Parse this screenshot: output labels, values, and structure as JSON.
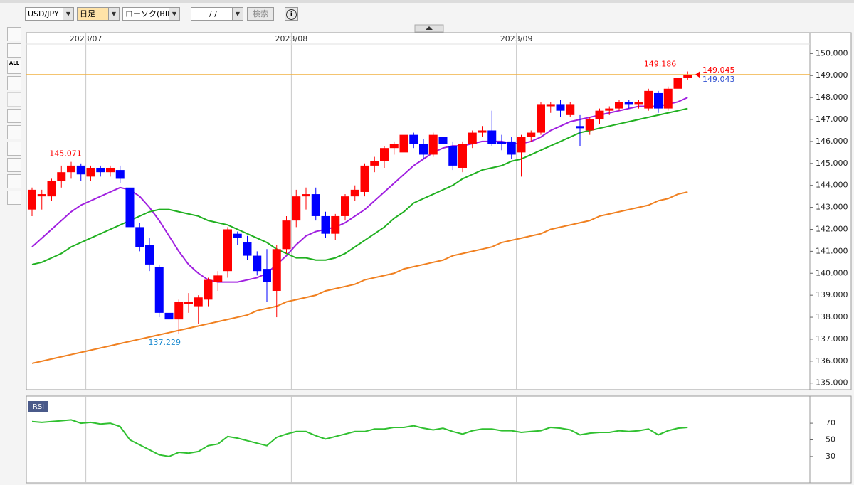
{
  "toolbar": {
    "symbol": "USD/JPY",
    "timeframe": "日足",
    "chart_type": "ローソク(BID)",
    "date": "/  /",
    "search": "検索",
    "info": "i"
  },
  "tools": {
    "all_label": "ALL"
  },
  "chart_data": [
    {
      "type": "candlestick",
      "categories": [
        null,
        null,
        null,
        null,
        null,
        null,
        "2023/07",
        null,
        null,
        null,
        null,
        null,
        null,
        null,
        null,
        null,
        null,
        null,
        null,
        null,
        null,
        null,
        null,
        null,
        null,
        null,
        null,
        "2023/08",
        null,
        null,
        null,
        null,
        null,
        null,
        null,
        null,
        null,
        null,
        null,
        null,
        null,
        null,
        null,
        null,
        null,
        null,
        null,
        null,
        null,
        null,
        "2023/09",
        null,
        null,
        null,
        null,
        null,
        null,
        null,
        null,
        null,
        null,
        null,
        null,
        null,
        null,
        null,
        null,
        null
      ],
      "open": [
        142.9,
        143.5,
        143.5,
        144.2,
        144.6,
        144.9,
        144.4,
        144.8,
        144.6,
        144.7,
        143.9,
        142.1,
        141.3,
        140.3,
        138.2,
        137.9,
        138.6,
        138.5,
        138.8,
        139.6,
        140.1,
        141.8,
        141.4,
        140.8,
        140.2,
        139.2,
        141.1,
        142.4,
        143.5,
        143.6,
        142.6,
        141.8,
        142.6,
        143.5,
        143.7,
        144.9,
        145.1,
        145.7,
        145.5,
        146.3,
        145.9,
        145.4,
        146.2,
        145.8,
        144.8,
        145.9,
        146.4,
        146.5,
        146.0,
        146.0,
        145.5,
        146.2,
        146.4,
        147.6,
        147.7,
        147.2,
        146.7,
        146.5,
        147.0,
        147.4,
        147.5,
        147.8,
        147.7,
        147.5,
        148.2,
        147.5,
        148.4,
        148.9
      ],
      "high": [
        143.9,
        143.8,
        144.3,
        144.9,
        145.071,
        145.0,
        144.9,
        144.9,
        144.9,
        144.9,
        144.2,
        142.3,
        141.6,
        140.4,
        138.4,
        138.8,
        139.1,
        139.0,
        139.8,
        140.1,
        142.1,
        141.9,
        141.7,
        141.0,
        141.1,
        141.3,
        142.6,
        143.8,
        143.9,
        143.9,
        142.8,
        142.7,
        143.6,
        144.0,
        145.0,
        145.3,
        145.8,
        146.0,
        146.4,
        146.4,
        146.1,
        146.4,
        146.4,
        146.0,
        146.0,
        146.5,
        146.7,
        147.4,
        146.3,
        146.2,
        146.3,
        146.5,
        147.8,
        147.8,
        147.9,
        147.8,
        147.2,
        147.1,
        147.5,
        147.6,
        147.9,
        147.9,
        147.9,
        148.4,
        148.3,
        148.5,
        149.0,
        149.186
      ],
      "low": [
        142.6,
        142.9,
        143.3,
        143.9,
        144.3,
        144.2,
        144.2,
        144.4,
        144.4,
        144.1,
        142.0,
        141.0,
        140.1,
        138.0,
        137.8,
        137.229,
        138.2,
        137.7,
        138.5,
        139.2,
        139.8,
        141.3,
        140.6,
        139.9,
        138.7,
        138.0,
        140.9,
        142.1,
        142.9,
        142.4,
        141.6,
        141.5,
        142.4,
        143.3,
        143.5,
        144.6,
        144.8,
        145.4,
        145.3,
        145.7,
        145.2,
        145.3,
        145.7,
        144.7,
        144.6,
        145.7,
        146.2,
        145.8,
        145.6,
        145.2,
        144.4,
        146.0,
        146.3,
        147.3,
        147.1,
        147.1,
        145.8,
        146.3,
        146.8,
        147.2,
        147.4,
        147.5,
        147.5,
        147.4,
        147.3,
        147.4,
        148.3,
        148.8
      ],
      "close": [
        143.8,
        143.6,
        144.2,
        144.6,
        144.9,
        144.5,
        144.8,
        144.6,
        144.8,
        144.3,
        142.1,
        141.2,
        140.4,
        138.2,
        137.9,
        138.7,
        138.7,
        138.9,
        139.7,
        139.9,
        142.0,
        141.6,
        140.8,
        140.1,
        139.6,
        141.1,
        142.4,
        143.5,
        143.6,
        142.6,
        141.8,
        142.6,
        143.5,
        143.8,
        144.9,
        145.1,
        145.7,
        145.9,
        146.3,
        145.9,
        145.4,
        146.3,
        145.9,
        144.9,
        145.9,
        146.4,
        146.5,
        145.9,
        145.9,
        145.4,
        146.2,
        146.4,
        147.7,
        147.7,
        147.4,
        147.7,
        146.6,
        147.0,
        147.4,
        147.5,
        147.8,
        147.7,
        147.8,
        148.3,
        147.5,
        148.4,
        148.9,
        149.045
      ],
      "up_color": "#ff0000",
      "down_color": "#0000ff",
      "ask": 149.043,
      "ask_color": "#3050d0",
      "price_line_color": "#f0b040",
      "series": [
        {
          "color": "#a020e0",
          "values": [
            141.2,
            141.6,
            142.0,
            142.4,
            142.8,
            143.1,
            143.3,
            143.5,
            143.7,
            143.9,
            143.8,
            143.5,
            143.0,
            142.4,
            141.7,
            141.0,
            140.4,
            140.0,
            139.7,
            139.6,
            139.6,
            139.6,
            139.7,
            139.8,
            140.0,
            140.4,
            140.8,
            141.3,
            141.7,
            141.9,
            142.0,
            142.1,
            142.3,
            142.6,
            142.9,
            143.3,
            143.7,
            144.1,
            144.5,
            144.9,
            145.2,
            145.5,
            145.7,
            145.8,
            145.8,
            145.9,
            146.0,
            146.0,
            146.0,
            145.9,
            145.9,
            146.0,
            146.2,
            146.5,
            146.7,
            146.9,
            147.0,
            147.1,
            147.2,
            147.3,
            147.4,
            147.5,
            147.6,
            147.6,
            147.6,
            147.7,
            147.8,
            148.0
          ]
        },
        {
          "color": "#20b020",
          "values": [
            140.4,
            140.5,
            140.7,
            140.9,
            141.2,
            141.4,
            141.6,
            141.8,
            142.0,
            142.2,
            142.4,
            142.6,
            142.8,
            142.9,
            142.9,
            142.8,
            142.7,
            142.6,
            142.4,
            142.3,
            142.2,
            142.0,
            141.8,
            141.6,
            141.4,
            141.1,
            140.9,
            140.7,
            140.7,
            140.6,
            140.6,
            140.7,
            140.9,
            141.2,
            141.5,
            141.8,
            142.1,
            142.5,
            142.8,
            143.2,
            143.4,
            143.6,
            143.8,
            144.0,
            144.3,
            144.5,
            144.7,
            144.8,
            144.9,
            145.1,
            145.2,
            145.4,
            145.6,
            145.8,
            146.0,
            146.2,
            146.4,
            146.5,
            146.6,
            146.7,
            146.8,
            146.9,
            147.0,
            147.1,
            147.2,
            147.3,
            147.4,
            147.5
          ]
        },
        {
          "color": "#f08020",
          "values": [
            135.9,
            136.0,
            136.1,
            136.2,
            136.3,
            136.4,
            136.5,
            136.6,
            136.7,
            136.8,
            136.9,
            137.0,
            137.1,
            137.2,
            137.3,
            137.4,
            137.5,
            137.6,
            137.7,
            137.8,
            137.9,
            138.0,
            138.1,
            138.3,
            138.4,
            138.5,
            138.7,
            138.8,
            138.9,
            139.0,
            139.2,
            139.3,
            139.4,
            139.5,
            139.7,
            139.8,
            139.9,
            140.0,
            140.2,
            140.3,
            140.4,
            140.5,
            140.6,
            140.8,
            140.9,
            141.0,
            141.1,
            141.2,
            141.4,
            141.5,
            141.6,
            141.7,
            141.8,
            142.0,
            142.1,
            142.2,
            142.3,
            142.4,
            142.6,
            142.7,
            142.8,
            142.9,
            143.0,
            143.1,
            143.3,
            143.4,
            143.6,
            143.7
          ]
        }
      ],
      "ylim": [
        134.7,
        150.95
      ],
      "yticks": [
        {
          "value": 135,
          "label": "135.000"
        },
        {
          "value": 136,
          "label": "136.000"
        },
        {
          "value": 137,
          "label": "137.000"
        },
        {
          "value": 138,
          "label": "138.000"
        },
        {
          "value": 139,
          "label": "139.000"
        },
        {
          "value": 140,
          "label": "140.000"
        },
        {
          "value": 141,
          "label": "141.000"
        },
        {
          "value": 142,
          "label": "142.000"
        },
        {
          "value": 143,
          "label": "143.000"
        },
        {
          "value": 144,
          "label": "144.000"
        },
        {
          "value": 145,
          "label": "145.000"
        },
        {
          "value": 146,
          "label": "146.000"
        },
        {
          "value": 147,
          "label": "147.000"
        },
        {
          "value": 148,
          "label": "148.000"
        },
        {
          "value": 149,
          "label": "149.000"
        },
        {
          "value": 150,
          "label": "150.000"
        }
      ],
      "grid": "x"
    },
    {
      "type": "line",
      "title": "RSI",
      "series": [
        {
          "color": "#30c030",
          "values": [
            72,
            71,
            72,
            73,
            74,
            70,
            71,
            69,
            70,
            66,
            50,
            44,
            38,
            32,
            30,
            35,
            34,
            36,
            43,
            45,
            54,
            52,
            49,
            46,
            43,
            53,
            57,
            60,
            60,
            55,
            51,
            54,
            57,
            60,
            60,
            63,
            63,
            65,
            65,
            67,
            64,
            62,
            64,
            60,
            57,
            61,
            63,
            63,
            61,
            61,
            59,
            60,
            61,
            65,
            64,
            62,
            56,
            58,
            59,
            59,
            61,
            60,
            61,
            63,
            56,
            61,
            64,
            65
          ]
        }
      ],
      "ylim": [
        0,
        100
      ],
      "yticks": [
        30,
        50,
        70
      ]
    }
  ]
}
